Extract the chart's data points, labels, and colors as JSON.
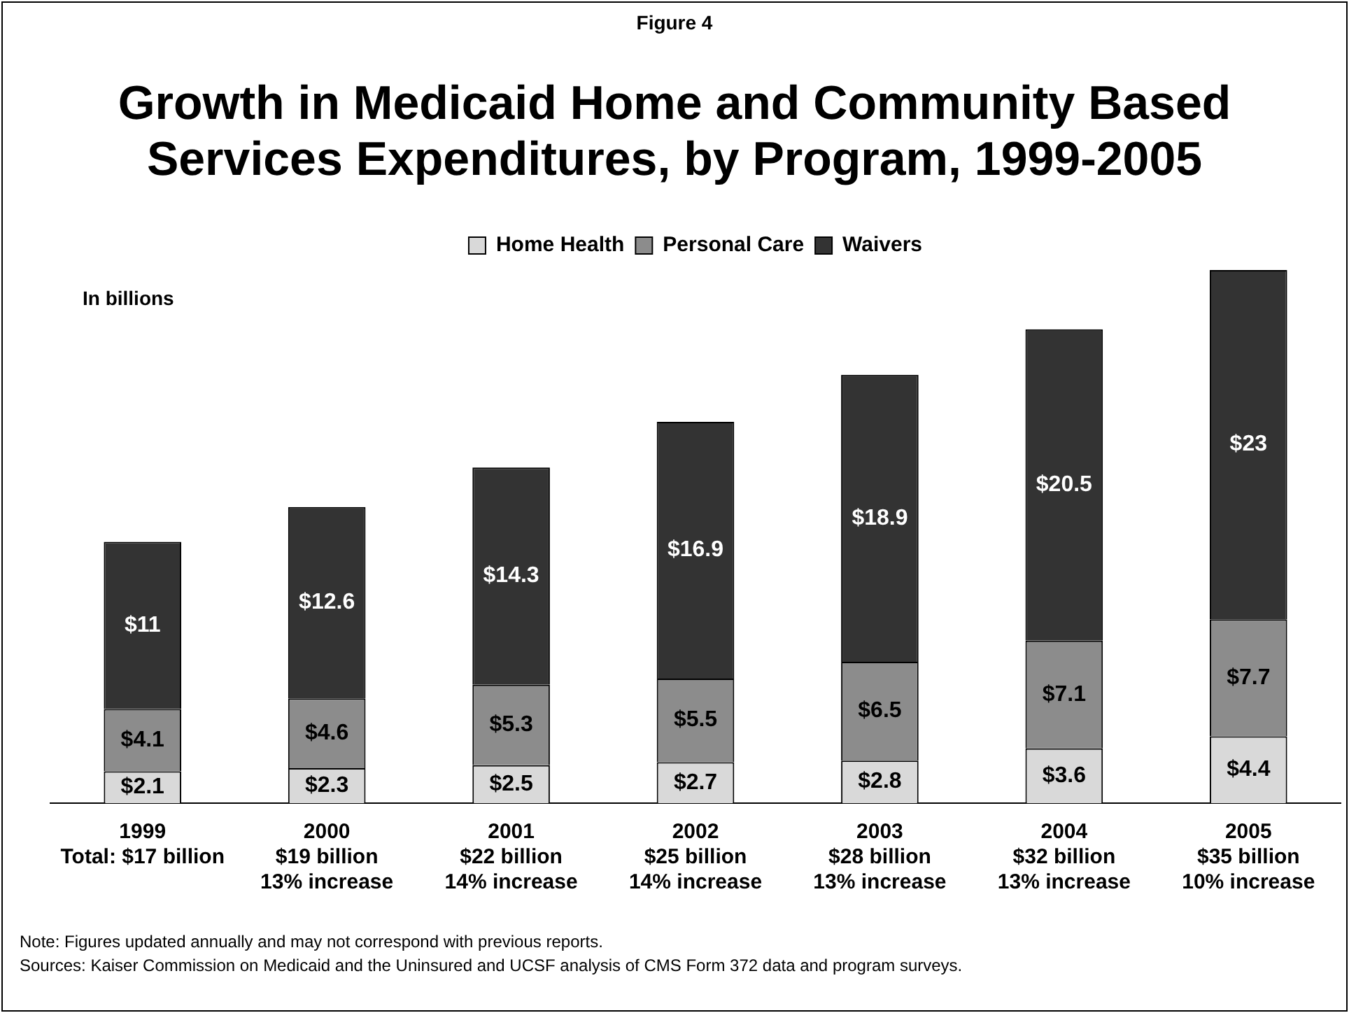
{
  "chart_data": {
    "type": "bar",
    "stacked": true,
    "subtitle": "Figure 4",
    "title": "Growth in Medicaid Home and Community Based Services Expenditures, by Program, 1999-2005",
    "categories": [
      "1999\nTotal: $17 billion",
      "2000\n$19 billion\n13% increase",
      "2001\n$22 billion\n14% increase",
      "2002\n$25 billion\n14% increase",
      "2003\n$28 billion\n13% increase",
      "2004\n$32 billion\n13% increase",
      "2005\n$35 billion\n10% increase"
    ],
    "series": [
      {
        "name": "Home Health",
        "color": "#d9d9d9",
        "values": [
          2.1,
          2.3,
          2.5,
          2.7,
          2.8,
          3.6,
          4.4
        ],
        "value_labels": [
          "$2.1",
          "$2.3",
          "$2.5",
          "$2.7",
          "$2.8",
          "$3.6",
          "$4.4"
        ]
      },
      {
        "name": "Personal Care",
        "color": "#8c8c8c",
        "values": [
          4.1,
          4.6,
          5.3,
          5.5,
          6.5,
          7.1,
          7.7
        ],
        "value_labels": [
          "$4.1",
          "$4.6",
          "$5.3",
          "$5.5",
          "$6.5",
          "$7.1",
          "$7.7"
        ]
      },
      {
        "name": "Waivers",
        "color": "#333333",
        "values": [
          11,
          12.6,
          14.3,
          16.9,
          18.9,
          20.5,
          23
        ],
        "value_labels": [
          "$11",
          "$12.6",
          "$14.3",
          "$16.9",
          "$18.9",
          "$20.5",
          "$23"
        ]
      }
    ],
    "legend": "top",
    "grid": false,
    "tick_labels": "x",
    "annotations": [
      "In billions",
      "Note: Figures updated annually and may not correspond with previous reports.",
      "Sources: Kaiser Commission on Medicaid and the Uninsured and UCSF analysis of CMS Form 372 data and program surveys."
    ]
  }
}
